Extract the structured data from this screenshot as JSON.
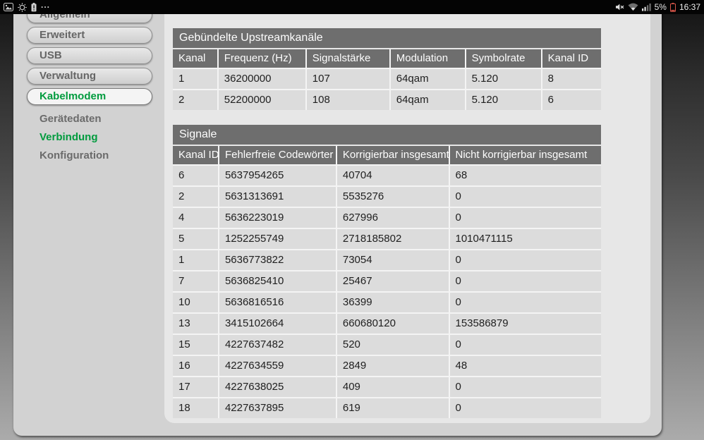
{
  "status_bar": {
    "left_icons": [
      "screenshot-icon",
      "sync-icon",
      "battery-alert-icon"
    ],
    "more_indicator": "...",
    "right_icons": [
      "mute-icon",
      "wifi-icon",
      "cell-signal-icon",
      "battery-icon"
    ],
    "battery_percent": "5%",
    "time": "16:37"
  },
  "colors": {
    "accent_green": "#009b3e",
    "table_header_bg": "#6e6e6e",
    "battery_low_red": "#d9564a"
  },
  "sidebar": {
    "items": [
      {
        "id": "allgemein",
        "label": "Allgemein",
        "type": "pill",
        "active": false
      },
      {
        "id": "erweitert",
        "label": "Erweitert",
        "type": "pill",
        "active": false
      },
      {
        "id": "usb",
        "label": "USB",
        "type": "pill",
        "active": false
      },
      {
        "id": "verwaltung",
        "label": "Verwaltung",
        "type": "pill",
        "active": false
      },
      {
        "id": "kabelmodem",
        "label": "Kabelmodem",
        "type": "pill",
        "active": true
      },
      {
        "id": "geraetedaten",
        "label": "Gerätedaten",
        "type": "link",
        "active": false
      },
      {
        "id": "verbindung",
        "label": "Verbindung",
        "type": "link",
        "active": true
      },
      {
        "id": "konfiguration",
        "label": "Konfiguration",
        "type": "link",
        "active": false
      }
    ]
  },
  "tables": [
    {
      "name": "upstream-channels",
      "title": "Gebündelte Upstreamkanäle",
      "columns": [
        "Kanal",
        "Frequenz (Hz)",
        "Signalstärke",
        "Modulation",
        "Symbolrate",
        "Kanal ID"
      ],
      "rows": [
        [
          "1",
          "36200000",
          "107",
          "64qam",
          "5.120",
          "8"
        ],
        [
          "2",
          "52200000",
          "108",
          "64qam",
          "5.120",
          "6"
        ]
      ]
    },
    {
      "name": "signals",
      "title": "Signale",
      "columns": [
        "Kanal ID",
        "Fehlerfreie Codewörter",
        "Korrigierbar insgesamt",
        "Nicht korrigierbar insgesamt"
      ],
      "rows": [
        [
          "6",
          "5637954265",
          "40704",
          "68"
        ],
        [
          "2",
          "5631313691",
          "5535276",
          "0"
        ],
        [
          "4",
          "5636223019",
          "627996",
          "0"
        ],
        [
          "5",
          "1252255749",
          "2718185802",
          "1010471115"
        ],
        [
          "1",
          "5636773822",
          "73054",
          "0"
        ],
        [
          "7",
          "5636825410",
          "25467",
          "0"
        ],
        [
          "10",
          "5636816516",
          "36399",
          "0"
        ],
        [
          "13",
          "3415102664",
          "660680120",
          "153586879"
        ],
        [
          "15",
          "4227637482",
          "520",
          "0"
        ],
        [
          "16",
          "4227634559",
          "2849",
          "48"
        ],
        [
          "17",
          "4227638025",
          "409",
          "0"
        ],
        [
          "18",
          "4227637895",
          "619",
          "0"
        ]
      ]
    }
  ]
}
